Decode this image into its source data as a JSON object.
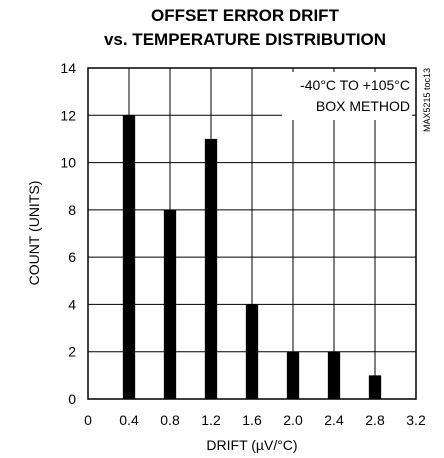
{
  "chart_data": {
    "type": "bar",
    "title_lines": [
      "OFFSET ERROR DRIFT",
      "vs. TEMPERATURE DISTRIBUTION"
    ],
    "xlabel": "DRIFT (µV/°C)",
    "ylabel": "COUNT (UNITS)",
    "x_ticks": [
      "0",
      "0.4",
      "0.8",
      "1.2",
      "1.6",
      "2.0",
      "2.4",
      "2.8",
      "3.2"
    ],
    "y_ticks": [
      "0",
      "2",
      "4",
      "6",
      "8",
      "10",
      "12",
      "14"
    ],
    "xlim": [
      0,
      3.2
    ],
    "ylim": [
      0,
      14
    ],
    "bar_width": 0.12,
    "x": [
      0.4,
      0.8,
      1.2,
      1.6,
      2.0,
      2.4,
      2.8
    ],
    "values": [
      12,
      8,
      11,
      4,
      2,
      2,
      1
    ],
    "annotation_lines": [
      "-40°C TO +105°C",
      "BOX METHOD"
    ],
    "side_label": "MAX5215 toc13",
    "grid": true,
    "bar_color": "#000000"
  }
}
